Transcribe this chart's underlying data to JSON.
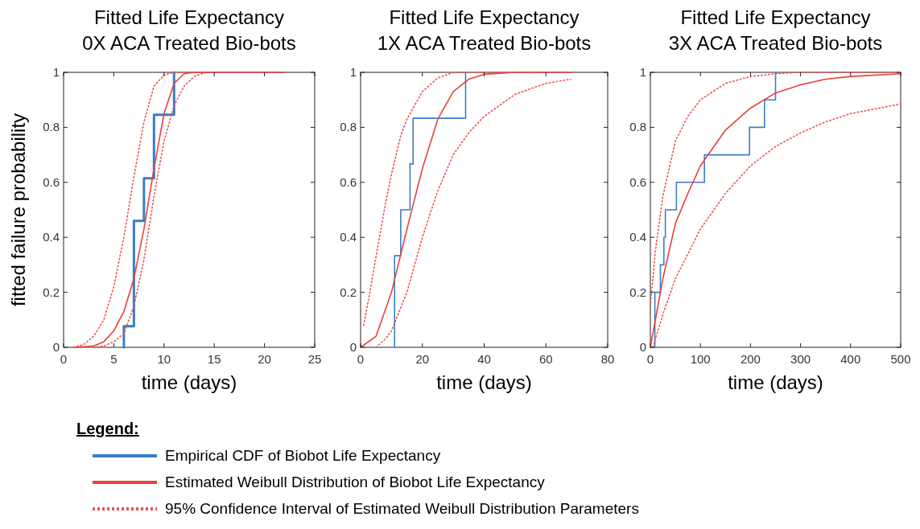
{
  "chart_data": [
    {
      "type": "line",
      "title": "Fitted Life Expectancy\n0X ACA Treated Bio-bots",
      "xlabel": "time (days)",
      "ylabel": "fitted failure probability",
      "xlim": [
        0,
        25
      ],
      "xticks": [
        0,
        5,
        10,
        15,
        20,
        25
      ],
      "ylim": [
        0,
        1
      ],
      "yticks": [
        0,
        0.2,
        0.4,
        0.6,
        0.8,
        1
      ],
      "legend": "bottom",
      "legend_title": "Legend:",
      "series": [
        {
          "name": "Empirical CDF of Biobot Life Expectancy",
          "type": "step",
          "color": "#3a7dc4",
          "x": [
            6,
            6,
            7,
            8,
            9,
            11,
            11
          ],
          "values": [
            0,
            0.077,
            0.46,
            0.615,
            0.846,
            1,
            1
          ]
        },
        {
          "name": "Estimated Weibull Distribution of Biobot Life Expectancy",
          "color": "#e8413a",
          "x": [
            1,
            3,
            4,
            5,
            6,
            7,
            8,
            9,
            10,
            11,
            12,
            13,
            22
          ],
          "values": [
            0,
            0.005,
            0.02,
            0.06,
            0.13,
            0.25,
            0.43,
            0.65,
            0.85,
            0.96,
            0.995,
            1,
            1
          ]
        },
        {
          "name": "95% Confidence Interval of Estimated Weibull Distribution Parameters",
          "line_style": "dotted",
          "color": "#f05050",
          "x": [
            1,
            2,
            3,
            4,
            5,
            6,
            7,
            8,
            9,
            10,
            11,
            15
          ],
          "values": [
            0,
            0.01,
            0.04,
            0.1,
            0.22,
            0.4,
            0.62,
            0.82,
            0.95,
            0.99,
            1,
            1
          ]
        },
        {
          "type": "line",
          "line_style": "dotted",
          "color": "#f05050",
          "x": [
            3,
            4,
            5,
            6,
            7,
            8,
            9,
            10,
            11,
            12,
            13,
            14,
            15
          ],
          "values": [
            0,
            0.005,
            0.02,
            0.05,
            0.15,
            0.32,
            0.55,
            0.75,
            0.88,
            0.95,
            0.985,
            0.998,
            1
          ]
        }
      ]
    },
    {
      "type": "line",
      "title": "Fitted Life Expectancy\n1X ACA Treated Bio-bots",
      "xlabel": "time (days)",
      "xlim": [
        0,
        80
      ],
      "xticks": [
        0,
        20,
        40,
        60,
        80
      ],
      "ylim": [
        0,
        1
      ],
      "yticks": [
        0,
        0.2,
        0.4,
        0.6,
        0.8,
        1
      ],
      "series": [
        {
          "type": "step",
          "color": "#3a7dc4",
          "x": [
            11,
            11,
            13,
            16,
            17,
            34,
            34
          ],
          "values": [
            0,
            0.333,
            0.5,
            0.667,
            0.833,
            1,
            1
          ]
        },
        {
          "type": "line",
          "color": "#e8413a",
          "x": [
            0,
            5,
            10,
            15,
            20,
            25,
            30,
            35,
            40,
            50,
            68
          ],
          "values": [
            0,
            0.04,
            0.2,
            0.43,
            0.65,
            0.83,
            0.93,
            0.975,
            0.993,
            1,
            1
          ]
        },
        {
          "type": "line",
          "line_style": "dotted",
          "color": "#f05050",
          "x": [
            1,
            3,
            5,
            8,
            10,
            13,
            15,
            20,
            25,
            30,
            68
          ],
          "values": [
            0.08,
            0.2,
            0.33,
            0.52,
            0.63,
            0.77,
            0.83,
            0.93,
            0.98,
            1,
            1
          ]
        },
        {
          "type": "line",
          "line_style": "dotted",
          "color": "#f05050",
          "x": [
            5,
            8,
            10,
            15,
            20,
            25,
            30,
            35,
            40,
            50,
            60,
            68
          ],
          "values": [
            0,
            0.03,
            0.06,
            0.2,
            0.4,
            0.57,
            0.7,
            0.78,
            0.84,
            0.92,
            0.96,
            0.975
          ]
        }
      ]
    },
    {
      "type": "line",
      "title": "Fitted Life Expectancy\n3X ACA Treated Bio-bots",
      "xlabel": "time (days)",
      "xlim": [
        0,
        500
      ],
      "xticks": [
        0,
        100,
        200,
        300,
        400,
        500
      ],
      "ylim": [
        0,
        1
      ],
      "yticks": [
        0,
        0.2,
        0.4,
        0.6,
        0.8,
        1
      ],
      "series": [
        {
          "type": "step",
          "color": "#3a7dc4",
          "x": [
            9,
            9,
            20,
            27,
            30,
            52,
            108,
            198,
            228,
            250,
            250
          ],
          "values": [
            0,
            0.2,
            0.3,
            0.4,
            0.5,
            0.6,
            0.7,
            0.8,
            0.9,
            1,
            1
          ]
        },
        {
          "type": "line",
          "color": "#e8413a",
          "x": [
            0,
            10,
            25,
            50,
            75,
            100,
            150,
            200,
            250,
            300,
            350,
            400,
            500
          ],
          "values": [
            0,
            0.1,
            0.25,
            0.45,
            0.56,
            0.66,
            0.79,
            0.87,
            0.925,
            0.955,
            0.975,
            0.985,
            0.995
          ]
        },
        {
          "type": "line",
          "line_style": "dotted",
          "color": "#f05050",
          "x": [
            0,
            10,
            25,
            50,
            75,
            100,
            150,
            200,
            250,
            300,
            500
          ],
          "values": [
            0.15,
            0.35,
            0.55,
            0.75,
            0.84,
            0.9,
            0.96,
            0.985,
            0.995,
            1,
            1
          ]
        },
        {
          "type": "line",
          "line_style": "dotted",
          "color": "#f05050",
          "x": [
            5,
            10,
            25,
            50,
            100,
            150,
            200,
            250,
            300,
            350,
            400,
            500
          ],
          "values": [
            0,
            0.03,
            0.12,
            0.25,
            0.43,
            0.56,
            0.66,
            0.73,
            0.78,
            0.82,
            0.85,
            0.885
          ]
        }
      ]
    }
  ]
}
